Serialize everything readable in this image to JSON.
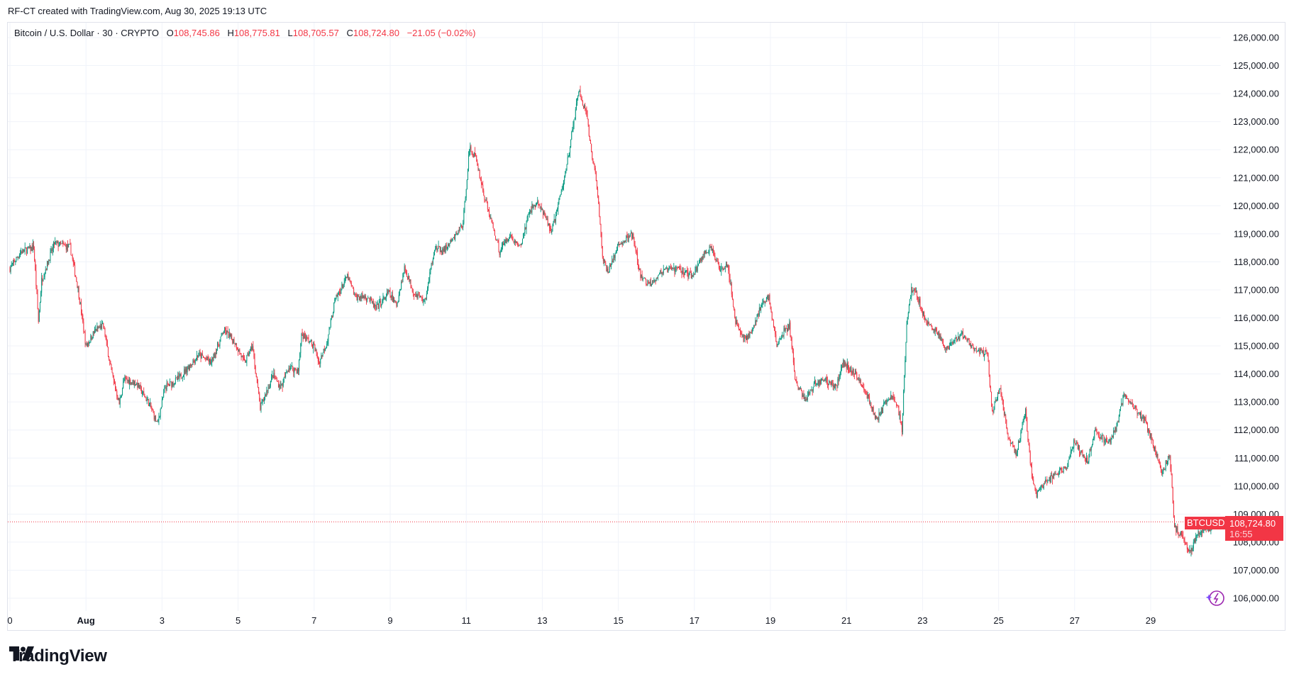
{
  "header": {
    "caption": "RF-CT created with TradingView.com, Aug 30, 2025 19:13 UTC"
  },
  "legend": {
    "symbol": "Bitcoin / U.S. Dollar · 30 · CRYPTO",
    "o_label": "O",
    "o": "108,745.86",
    "h_label": "H",
    "h": "108,775.81",
    "l_label": "L",
    "l": "108,705.57",
    "c_label": "C",
    "c": "108,724.80",
    "change": "−21.05 (−0.02%)"
  },
  "price_tag": {
    "ticker": "BTCUSD",
    "price": "108,724.80",
    "countdown": "16:55"
  },
  "branding": {
    "logo_text": "TradingView"
  },
  "icons": {
    "assistant": "lightning-sparkle-icon",
    "logo": "tradingview-logo-icon"
  },
  "colors": {
    "up": "#089981",
    "down": "#f23645",
    "grid": "#f0f3fa",
    "last_price": "#f23645",
    "assistant": "#9c27b0"
  },
  "chart_data": {
    "type": "candlestick",
    "interval": "30",
    "ylim": [
      105600,
      126600
    ],
    "y_ticks": [
      "106,000.00",
      "107,000.00",
      "108,000.00",
      "109,000.00",
      "110,000.00",
      "111,000.00",
      "112,000.00",
      "113,000.00",
      "114,000.00",
      "115,000.00",
      "116,000.00",
      "117,000.00",
      "118,000.00",
      "119,000.00",
      "120,000.00",
      "121,000.00",
      "122,000.00",
      "123,000.00",
      "124,000.00",
      "125,000.00",
      "126,000.00"
    ],
    "x_ticks": [
      {
        "label": "0",
        "date": "2025-07-30"
      },
      {
        "label": "Aug",
        "date": "2025-08-01"
      },
      {
        "label": "3",
        "date": "2025-08-03"
      },
      {
        "label": "5",
        "date": "2025-08-05"
      },
      {
        "label": "7",
        "date": "2025-08-07"
      },
      {
        "label": "9",
        "date": "2025-08-09"
      },
      {
        "label": "11",
        "date": "2025-08-11"
      },
      {
        "label": "13",
        "date": "2025-08-13"
      },
      {
        "label": "15",
        "date": "2025-08-15"
      },
      {
        "label": "17",
        "date": "2025-08-17"
      },
      {
        "label": "19",
        "date": "2025-08-19"
      },
      {
        "label": "21",
        "date": "2025-08-21"
      },
      {
        "label": "23",
        "date": "2025-08-23"
      },
      {
        "label": "25",
        "date": "2025-08-25"
      },
      {
        "label": "27",
        "date": "2025-08-27"
      },
      {
        "label": "29",
        "date": "2025-08-29"
      }
    ],
    "grid": true,
    "last_price": 108724.8,
    "price_path": [
      [
        "2025-07-30 00:00",
        117780
      ],
      [
        "2025-07-30 07:00",
        118360
      ],
      [
        "2025-07-30 15:00",
        118510
      ],
      [
        "2025-07-30 18:00",
        115870
      ],
      [
        "2025-07-30 20:00",
        117340
      ],
      [
        "2025-07-31 04:00",
        118660
      ],
      [
        "2025-07-31 14:00",
        118510
      ],
      [
        "2025-07-31 19:00",
        117040
      ],
      [
        "2025-08-01 00:00",
        114990
      ],
      [
        "2025-08-01 06:00",
        115570
      ],
      [
        "2025-08-01 11:00",
        115720
      ],
      [
        "2025-08-01 16:00",
        114110
      ],
      [
        "2025-08-01 21:00",
        112930
      ],
      [
        "2025-08-02 00:00",
        113810
      ],
      [
        "2025-08-02 08:00",
        113660
      ],
      [
        "2025-08-02 16:00",
        112930
      ],
      [
        "2025-08-02 21:00",
        112200
      ],
      [
        "2025-08-03 02:00",
        113520
      ],
      [
        "2025-08-03 10:00",
        113810
      ],
      [
        "2025-08-03 23:00",
        114690
      ],
      [
        "2025-08-04 07:00",
        114400
      ],
      [
        "2025-08-04 15:00",
        115570
      ],
      [
        "2025-08-04 22:00",
        115130
      ],
      [
        "2025-08-05 04:00",
        114400
      ],
      [
        "2025-08-05 09:00",
        114990
      ],
      [
        "2025-08-05 14:00",
        112780
      ],
      [
        "2025-08-05 22:00",
        113960
      ],
      [
        "2025-08-06 03:00",
        113520
      ],
      [
        "2025-08-06 08:00",
        114250
      ],
      [
        "2025-08-06 14:00",
        114110
      ],
      [
        "2025-08-06 16:00",
        115430
      ],
      [
        "2025-08-07 00:00",
        114990
      ],
      [
        "2025-08-07 03:00",
        114400
      ],
      [
        "2025-08-07 08:00",
        115130
      ],
      [
        "2025-08-07 13:00",
        116600
      ],
      [
        "2025-08-07 21:00",
        117480
      ],
      [
        "2025-08-08 02:00",
        116750
      ],
      [
        "2025-08-08 10:00",
        116750
      ],
      [
        "2025-08-08 15:00",
        116310
      ],
      [
        "2025-08-08 23:00",
        116900
      ],
      [
        "2025-08-09 04:00",
        116450
      ],
      [
        "2025-08-09 09:00",
        117780
      ],
      [
        "2025-08-09 15:00",
        116900
      ],
      [
        "2025-08-09 22:00",
        116600
      ],
      [
        "2025-08-10 04:00",
        118510
      ],
      [
        "2025-08-10 09:00",
        118360
      ],
      [
        "2025-08-10 16:00",
        118800
      ],
      [
        "2025-08-10 22:00",
        119390
      ],
      [
        "2025-08-11 02:00",
        122040
      ],
      [
        "2025-08-11 06:00",
        121740
      ],
      [
        "2025-08-11 11:00",
        120420
      ],
      [
        "2025-08-11 19:00",
        118800
      ],
      [
        "2025-08-11 21:00",
        118360
      ],
      [
        "2025-08-12 03:00",
        118950
      ],
      [
        "2025-08-12 10:00",
        118510
      ],
      [
        "2025-08-12 16:00",
        119830
      ],
      [
        "2025-08-12 21:00",
        120130
      ],
      [
        "2025-08-13 02:00",
        119540
      ],
      [
        "2025-08-13 06:00",
        119100
      ],
      [
        "2025-08-13 13:00",
        120710
      ],
      [
        "2025-08-13 18:00",
        122330
      ],
      [
        "2025-08-13 23:00",
        124090
      ],
      [
        "2025-08-14 04:00",
        123210
      ],
      [
        "2025-08-14 07:00",
        121890
      ],
      [
        "2025-08-14 10:00",
        121010
      ],
      [
        "2025-08-14 14:00",
        118220
      ],
      [
        "2025-08-14 17:00",
        117630
      ],
      [
        "2025-08-15 01:00",
        118660
      ],
      [
        "2025-08-15 09:00",
        118950
      ],
      [
        "2025-08-15 14:00",
        117480
      ],
      [
        "2025-08-15 19:00",
        117190
      ],
      [
        "2025-08-16 03:00",
        117630
      ],
      [
        "2025-08-16 13:00",
        117780
      ],
      [
        "2025-08-16 23:00",
        117480
      ],
      [
        "2025-08-17 05:00",
        118220
      ],
      [
        "2025-08-17 10:00",
        118510
      ],
      [
        "2025-08-17 16:00",
        117780
      ],
      [
        "2025-08-17 21:00",
        117920
      ],
      [
        "2025-08-18 02:00",
        115870
      ],
      [
        "2025-08-18 07:00",
        115280
      ],
      [
        "2025-08-18 12:00",
        115430
      ],
      [
        "2025-08-18 18:00",
        116450
      ],
      [
        "2025-08-18 23:00",
        116750
      ],
      [
        "2025-08-19 04:00",
        114990
      ],
      [
        "2025-08-19 09:00",
        115570
      ],
      [
        "2025-08-19 12:00",
        115720
      ],
      [
        "2025-08-19 16:00",
        113660
      ],
      [
        "2025-08-19 22:00",
        113080
      ],
      [
        "2025-08-20 04:00",
        113660
      ],
      [
        "2025-08-20 11:00",
        113810
      ],
      [
        "2025-08-20 17:00",
        113520
      ],
      [
        "2025-08-20 22:00",
        114400
      ],
      [
        "2025-08-21 06:00",
        113960
      ],
      [
        "2025-08-21 11:00",
        113520
      ],
      [
        "2025-08-21 19:00",
        112340
      ],
      [
        "2025-08-22 03:00",
        113220
      ],
      [
        "2025-08-22 08:00",
        112930
      ],
      [
        "2025-08-22 11:00",
        112050
      ],
      [
        "2025-08-22 14:00",
        115870
      ],
      [
        "2025-08-22 17:00",
        117040
      ],
      [
        "2025-08-22 21:00",
        116750
      ],
      [
        "2025-08-23 02:00",
        115870
      ],
      [
        "2025-08-23 10:00",
        115430
      ],
      [
        "2025-08-23 15:00",
        114840
      ],
      [
        "2025-08-24 01:00",
        115430
      ],
      [
        "2025-08-24 09:00",
        114840
      ],
      [
        "2025-08-24 17:00",
        114690
      ],
      [
        "2025-08-24 20:00",
        112640
      ],
      [
        "2025-08-25 01:00",
        113520
      ],
      [
        "2025-08-25 06:00",
        111760
      ],
      [
        "2025-08-25 11:00",
        111170
      ],
      [
        "2025-08-25 17:00",
        112640
      ],
      [
        "2025-08-25 21:00",
        110290
      ],
      [
        "2025-08-26 00:00",
        109700
      ],
      [
        "2025-08-26 06:00",
        110140
      ],
      [
        "2025-08-26 13:00",
        110430
      ],
      [
        "2025-08-26 19:00",
        110730
      ],
      [
        "2025-08-27 00:00",
        111610
      ],
      [
        "2025-08-27 08:00",
        110870
      ],
      [
        "2025-08-27 13:00",
        112050
      ],
      [
        "2025-08-27 21:00",
        111460
      ],
      [
        "2025-08-28 02:00",
        112050
      ],
      [
        "2025-08-28 07:00",
        113220
      ],
      [
        "2025-08-28 12:00",
        112930
      ],
      [
        "2025-08-28 20:00",
        112340
      ],
      [
        "2025-08-29 01:00",
        111610
      ],
      [
        "2025-08-29 07:00",
        110430
      ],
      [
        "2025-08-29 12:00",
        111170
      ],
      [
        "2025-08-29 15:00",
        108530
      ],
      [
        "2025-08-29 20:00",
        108230
      ],
      [
        "2025-08-30 01:00",
        107640
      ],
      [
        "2025-08-30 06:00",
        108380
      ],
      [
        "2025-08-30 14:00",
        108530
      ],
      [
        "2025-08-30 19:00",
        108724.8
      ]
    ]
  }
}
